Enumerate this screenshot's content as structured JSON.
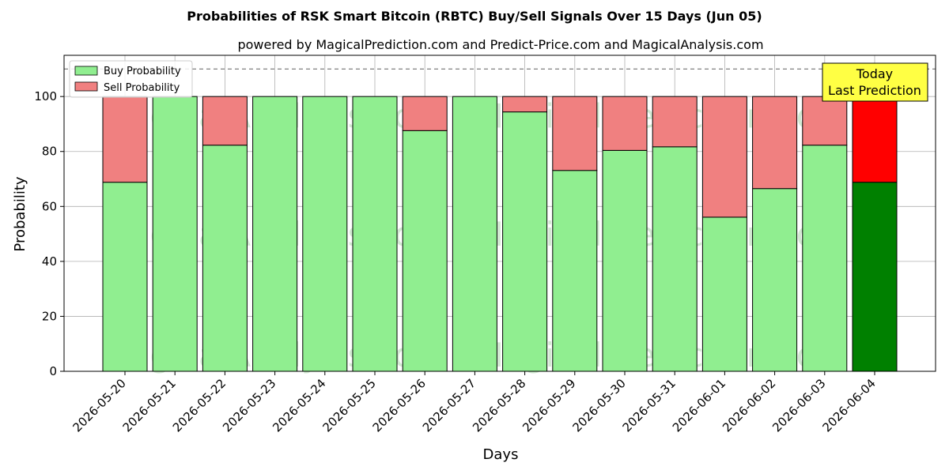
{
  "chart_data": {
    "type": "bar",
    "title": "Probabilities of RSK Smart Bitcoin (RBTC) Buy/Sell Signals Over 15 Days (Jun 05)",
    "subtitle": "powered by MagicalPrediction.com and Predict-Price.com and MagicalAnalysis.com",
    "xlabel": "Days",
    "ylabel": "Probability",
    "ylim": [
      0,
      115
    ],
    "yticks": [
      0,
      20,
      40,
      60,
      80,
      100
    ],
    "reference_line": 110,
    "grid": true,
    "stacked": true,
    "legend_position": "top-left",
    "categories": [
      "2026-05-20",
      "2026-05-21",
      "2026-05-22",
      "2026-05-23",
      "2026-05-24",
      "2026-05-25",
      "2026-05-26",
      "2026-05-27",
      "2026-05-28",
      "2026-05-29",
      "2026-05-30",
      "2026-05-31",
      "2026-06-01",
      "2026-06-02",
      "2026-06-03",
      "2026-06-04"
    ],
    "series": [
      {
        "name": "Buy Probability",
        "color": "#90ee90",
        "values": [
          68.8,
          100,
          82.3,
          100,
          100,
          100,
          87.6,
          100,
          94.4,
          73.1,
          80.4,
          81.7,
          56.1,
          66.5,
          82.3,
          68.8
        ]
      },
      {
        "name": "Sell Probability",
        "color": "#f08080",
        "values": [
          31.2,
          0,
          17.7,
          0,
          0,
          0,
          12.4,
          0,
          5.6,
          26.9,
          19.6,
          18.3,
          43.9,
          33.5,
          17.7,
          31.2
        ]
      }
    ],
    "highlight": {
      "index": 15,
      "buy_color": "#008000",
      "sell_color": "#ff0000"
    },
    "annotation": {
      "line1": "Today",
      "line2": "Last Prediction",
      "color": "#ffff44"
    },
    "watermarks": [
      "MagicalAnalysis.com",
      "MagicalPrediction.com"
    ]
  }
}
